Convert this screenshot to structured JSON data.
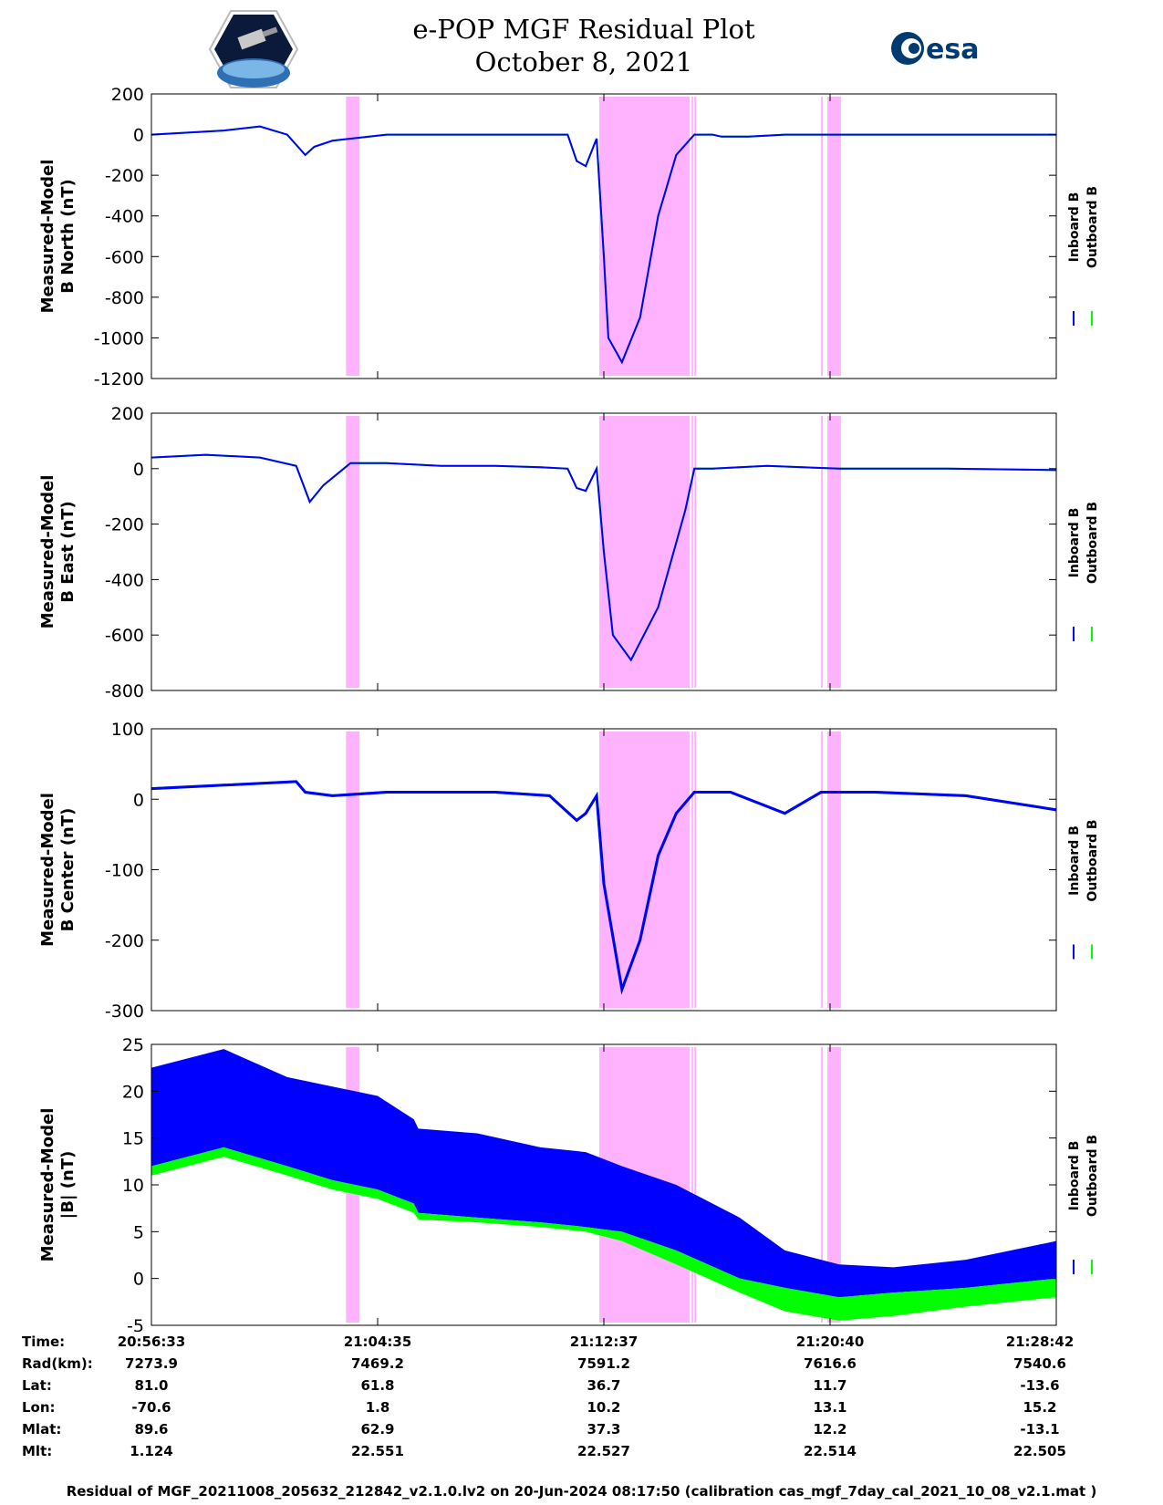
{
  "title_line1": "e-POP MGF Residual Plot",
  "title_line2": "October 8, 2021",
  "logos": {
    "left": "cassiope-mission-logo",
    "right_text": "esa"
  },
  "colors": {
    "inboard": "#0000ff",
    "outboard": "#00ff00",
    "shade": "#ffb3ff"
  },
  "chart_data": [
    {
      "type": "line",
      "ylabel_line1": "Measured-Model",
      "ylabel_line2": "B North (nT)",
      "ylim": [
        -1200,
        200
      ],
      "yticks": [
        200,
        0,
        -200,
        -400,
        -600,
        -800,
        -1000,
        -1200
      ],
      "legend": [
        "Inboard B",
        "Outboard B"
      ],
      "legend_placement": "right-vertical",
      "x": [
        0,
        40,
        80,
        120,
        150,
        170,
        180,
        200,
        260,
        320,
        380,
        430,
        460,
        470,
        480,
        492,
        500,
        505,
        520,
        540,
        560,
        580,
        600,
        620,
        630,
        660,
        700,
        760,
        800,
        900,
        1000
      ],
      "series": [
        {
          "name": "Inboard B",
          "values": [
            0,
            10,
            20,
            40,
            0,
            -100,
            -60,
            -30,
            0,
            0,
            0,
            0,
            0,
            -130,
            -155,
            -20,
            -600,
            -1000,
            -1120,
            -900,
            -400,
            -100,
            0,
            0,
            -10,
            -10,
            0,
            0,
            0,
            0,
            0
          ]
        },
        {
          "name": "Outboard B",
          "values": [
            0,
            10,
            20,
            40,
            0,
            -100,
            -60,
            -30,
            0,
            0,
            0,
            0,
            0,
            -130,
            -155,
            -20,
            -600,
            -1000,
            -1120,
            -900,
            -400,
            -100,
            0,
            0,
            -10,
            -10,
            0,
            0,
            0,
            0,
            0
          ]
        }
      ]
    },
    {
      "type": "line",
      "ylabel_line1": "Measured-Model",
      "ylabel_line2": "B East (nT)",
      "ylim": [
        -800,
        200
      ],
      "yticks": [
        200,
        0,
        -200,
        -400,
        -600,
        -800
      ],
      "legend": [
        "Inboard B",
        "Outboard B"
      ],
      "legend_placement": "right-vertical",
      "x": [
        0,
        60,
        120,
        160,
        175,
        190,
        220,
        260,
        320,
        380,
        430,
        460,
        470,
        480,
        492,
        500,
        510,
        530,
        560,
        590,
        600,
        620,
        680,
        760,
        880,
        1000
      ],
      "series": [
        {
          "name": "Inboard B",
          "values": [
            40,
            50,
            40,
            10,
            -120,
            -60,
            20,
            20,
            10,
            10,
            5,
            0,
            -70,
            -80,
            0,
            -300,
            -600,
            -690,
            -500,
            -150,
            0,
            0,
            10,
            0,
            0,
            -5
          ]
        },
        {
          "name": "Outboard B",
          "values": [
            40,
            50,
            40,
            10,
            -120,
            -60,
            20,
            20,
            10,
            10,
            5,
            0,
            -70,
            -80,
            0,
            -300,
            -600,
            -690,
            -500,
            -150,
            0,
            0,
            10,
            0,
            0,
            -5
          ]
        }
      ]
    },
    {
      "type": "line",
      "ylabel_line1": "Measured-Model",
      "ylabel_line2": "B Center (nT)",
      "ylim": [
        -300,
        100
      ],
      "yticks": [
        100,
        0,
        -100,
        -200,
        -300
      ],
      "legend": [
        "Inboard B",
        "Outboard B"
      ],
      "legend_placement": "right-vertical",
      "x": [
        0,
        80,
        160,
        170,
        200,
        260,
        380,
        440,
        470,
        480,
        492,
        500,
        520,
        540,
        560,
        580,
        600,
        640,
        700,
        740,
        800,
        900,
        1000
      ],
      "series": [
        {
          "name": "Inboard B",
          "values": [
            15,
            20,
            25,
            10,
            5,
            10,
            10,
            5,
            -30,
            -20,
            5,
            -120,
            -270,
            -200,
            -80,
            -20,
            10,
            10,
            -20,
            10,
            10,
            5,
            -15
          ]
        },
        {
          "name": "Outboard B",
          "values": [
            15,
            20,
            25,
            10,
            5,
            10,
            10,
            5,
            -30,
            -20,
            5,
            -120,
            -270,
            -200,
            -80,
            -20,
            10,
            10,
            -20,
            10,
            10,
            5,
            -15
          ]
        }
      ]
    },
    {
      "type": "area",
      "ylabel_line1": "Measured-Model",
      "ylabel_line2": "|B| (nT)",
      "ylim": [
        -5,
        25
      ],
      "yticks": [
        25,
        20,
        15,
        10,
        5,
        0,
        -5
      ],
      "legend": [
        "Inboard B",
        "Outboard B"
      ],
      "legend_placement": "right-vertical",
      "x": [
        0,
        80,
        150,
        200,
        250,
        290,
        295,
        360,
        430,
        480,
        520,
        580,
        650,
        700,
        760,
        820,
        900,
        1000
      ],
      "series": [
        {
          "name": "Inboard B",
          "values_high": [
            22.5,
            24.5,
            21.5,
            20.5,
            19.5,
            17,
            16,
            15.5,
            14,
            13.5,
            12,
            10,
            6.5,
            3,
            1.5,
            1.2,
            2,
            4
          ],
          "values_low": [
            12,
            14,
            12,
            10.5,
            9.5,
            8,
            7,
            6.5,
            6,
            5.5,
            5,
            3,
            0,
            -1,
            -2,
            -1.5,
            -1,
            0
          ]
        },
        {
          "name": "Outboard B",
          "values_high": [
            12,
            14,
            12,
            10.5,
            9.5,
            8,
            7,
            6.5,
            6,
            5.5,
            5,
            3,
            0,
            -1,
            -2,
            -1.5,
            -1,
            0
          ],
          "values_low": [
            11,
            13,
            11,
            9.5,
            8.5,
            7,
            6.3,
            6,
            5.5,
            5,
            4,
            1.5,
            -1.5,
            -3.5,
            -4.5,
            -4,
            -3,
            -2
          ]
        }
      ]
    }
  ],
  "shaded_intervals": [
    [
      0.215,
      0.23
    ],
    [
      0.495,
      0.595
    ],
    [
      0.597,
      0.599
    ],
    [
      0.6,
      0.602
    ],
    [
      0.74,
      0.742
    ],
    [
      0.747,
      0.762
    ]
  ],
  "time_axis": {
    "tick_fracs": [
      0.0,
      0.25,
      0.5,
      0.75,
      1.0
    ],
    "rows": [
      {
        "label": "Time:",
        "values": [
          "20:56:33",
          "21:04:35",
          "21:12:37",
          "21:20:40",
          "21:28:42"
        ]
      },
      {
        "label": "Rad(km):",
        "values": [
          "7273.9",
          "7469.2",
          "7591.2",
          "7616.6",
          "7540.6"
        ]
      },
      {
        "label": "Lat:",
        "values": [
          "81.0",
          "61.8",
          "36.7",
          "11.7",
          "-13.6"
        ]
      },
      {
        "label": "Lon:",
        "values": [
          "-70.6",
          "1.8",
          "10.2",
          "13.1",
          "15.2"
        ]
      },
      {
        "label": "Mlat:",
        "values": [
          "89.6",
          "62.9",
          "37.3",
          "12.2",
          "-13.1"
        ]
      },
      {
        "label": "Mlt:",
        "values": [
          "1.124",
          "22.551",
          "22.527",
          "22.514",
          "22.505"
        ]
      }
    ]
  },
  "footer": "Residual of MGF_20211008_205632_212842_v2.1.0.lv2 on 20-Jun-2024 08:17:50 (calibration cas_mgf_7day_cal_2021_10_08_v2.1.mat )"
}
